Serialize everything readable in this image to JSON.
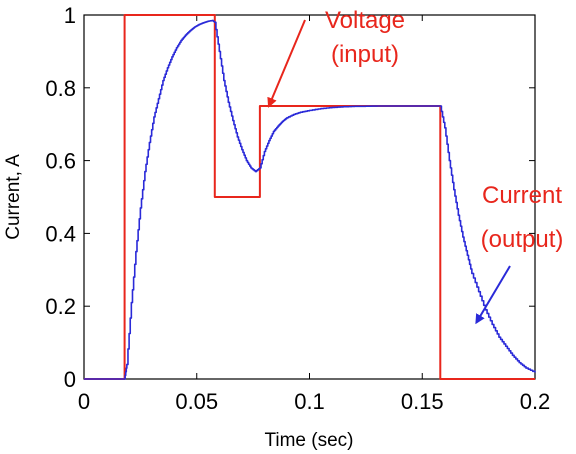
{
  "chart_data": {
    "type": "line",
    "title": "",
    "xlabel": "Time (sec)",
    "ylabel": "Current, A",
    "xlim": [
      0,
      0.2
    ],
    "ylim": [
      0,
      1
    ],
    "x_ticks": [
      0,
      0.05,
      0.1,
      0.15,
      0.2
    ],
    "x_tick_labels": [
      "0",
      "0.05",
      "0.1",
      "0.15",
      "0.2"
    ],
    "y_ticks": [
      0,
      0.2,
      0.4,
      0.6,
      0.8,
      1
    ],
    "y_tick_labels": [
      "0",
      "0.2",
      "0.4",
      "0.6",
      "0.8",
      "1"
    ],
    "grid": false,
    "legend": "none",
    "series": [
      {
        "color": "#e8261c",
        "step": true,
        "x": [
          0,
          0.018,
          0.018,
          0.058,
          0.058,
          0.078,
          0.078,
          0.158,
          0.158,
          0.2
        ],
        "y": [
          0,
          0,
          1,
          1,
          0.5,
          0.5,
          0.75,
          0.75,
          0,
          0
        ]
      },
      {
        "color": "#2a2ad8",
        "x": [
          0,
          0.018,
          0.019,
          0.021,
          0.023,
          0.025,
          0.027,
          0.029,
          0.031,
          0.033,
          0.035,
          0.037,
          0.039,
          0.041,
          0.043,
          0.045,
          0.047,
          0.049,
          0.051,
          0.053,
          0.055,
          0.057,
          0.058,
          0.06,
          0.062,
          0.064,
          0.066,
          0.068,
          0.07,
          0.072,
          0.074,
          0.076,
          0.078,
          0.08,
          0.082,
          0.084,
          0.086,
          0.088,
          0.09,
          0.093,
          0.096,
          0.1,
          0.105,
          0.11,
          0.115,
          0.12,
          0.13,
          0.14,
          0.15,
          0.158,
          0.16,
          0.162,
          0.164,
          0.166,
          0.168,
          0.17,
          0.172,
          0.175,
          0.178,
          0.181,
          0.184,
          0.187,
          0.19,
          0.193,
          0.196,
          0.2
        ],
        "y": [
          0,
          0,
          0.04,
          0.21,
          0.35,
          0.47,
          0.57,
          0.65,
          0.72,
          0.77,
          0.82,
          0.855,
          0.885,
          0.91,
          0.93,
          0.945,
          0.957,
          0.967,
          0.974,
          0.979,
          0.983,
          0.985,
          0.98,
          0.9,
          0.82,
          0.76,
          0.71,
          0.665,
          0.63,
          0.6,
          0.58,
          0.57,
          0.58,
          0.625,
          0.655,
          0.68,
          0.695,
          0.708,
          0.718,
          0.727,
          0.733,
          0.738,
          0.743,
          0.746,
          0.748,
          0.749,
          0.75,
          0.75,
          0.75,
          0.75,
          0.69,
          0.6,
          0.52,
          0.45,
          0.39,
          0.34,
          0.29,
          0.24,
          0.19,
          0.15,
          0.115,
          0.09,
          0.065,
          0.045,
          0.03,
          0.018
        ]
      }
    ],
    "annotations": [
      {
        "lines": [
          "Voltage",
          "(input)"
        ],
        "color": "#e8261c",
        "arrow_to": [
          0.082,
          0.75
        ]
      },
      {
        "lines": [
          "Current",
          "(output)"
        ],
        "color": "#e8261c",
        "arrow_color": "#2a2ad8",
        "arrow_to": [
          0.174,
          0.155
        ]
      }
    ]
  }
}
